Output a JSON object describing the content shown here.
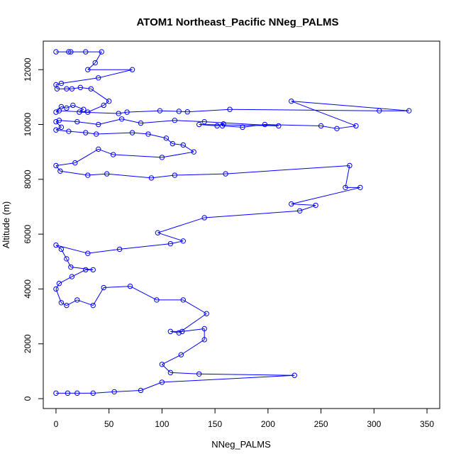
{
  "chart_data": {
    "type": "scatter",
    "connected": true,
    "title": "ATOM1 Northeast_Pacific NNeg_PALMS",
    "xlabel": "NNeg_PALMS",
    "ylabel": "Altitude (m)",
    "xlim": [
      -12,
      362
    ],
    "ylim": [
      -360,
      13040
    ],
    "x_ticks": [
      0,
      50,
      100,
      150,
      200,
      250,
      300,
      350
    ],
    "y_ticks": [
      0,
      2000,
      4000,
      6000,
      8000,
      10000,
      12000
    ],
    "grid": false,
    "legend": "none",
    "series_color": "#0000ff",
    "series": [
      {
        "points": [
          [
            0,
            12650
          ],
          [
            12,
            12650
          ],
          [
            14,
            12650
          ],
          [
            28,
            12650
          ],
          [
            43,
            12650
          ],
          [
            37,
            12250
          ],
          [
            30,
            12000
          ],
          [
            72,
            12000
          ],
          [
            40,
            11700
          ],
          [
            5,
            11500
          ],
          [
            0,
            11450
          ],
          [
            1,
            11300
          ],
          [
            10,
            11300
          ],
          [
            15,
            11300
          ],
          [
            23,
            11350
          ],
          [
            33,
            11300
          ],
          [
            50,
            10850
          ],
          [
            45,
            10700
          ],
          [
            30,
            10450
          ],
          [
            3,
            10500
          ],
          [
            0,
            10450
          ],
          [
            5,
            10650
          ],
          [
            10,
            10600
          ],
          [
            16,
            10700
          ],
          [
            26,
            10550
          ],
          [
            22,
            10450
          ],
          [
            59,
            10400
          ],
          [
            67,
            10450
          ],
          [
            98,
            10500
          ],
          [
            116,
            10480
          ],
          [
            124,
            10460
          ],
          [
            164,
            10550
          ],
          [
            305,
            10500
          ],
          [
            333,
            10500
          ],
          [
            222,
            10850
          ],
          [
            283,
            9950
          ],
          [
            265,
            9850
          ],
          [
            250,
            9950
          ],
          [
            197,
            10000
          ],
          [
            176,
            9900
          ],
          [
            157,
            9950
          ],
          [
            158,
            10020
          ],
          [
            152,
            9950
          ],
          [
            135,
            10000
          ],
          [
            210,
            9950
          ],
          [
            140,
            10100
          ],
          [
            112,
            10150
          ],
          [
            80,
            10050
          ],
          [
            62,
            10200
          ],
          [
            40,
            10000
          ],
          [
            20,
            10100
          ],
          [
            3,
            10150
          ],
          [
            0,
            10100
          ],
          [
            5,
            9900
          ],
          [
            0,
            9800
          ],
          [
            12,
            9750
          ],
          [
            28,
            9700
          ],
          [
            38,
            9650
          ],
          [
            72,
            9700
          ],
          [
            87,
            9650
          ],
          [
            104,
            9500
          ],
          [
            110,
            9300
          ],
          [
            120,
            9250
          ],
          [
            130,
            9000
          ],
          [
            100,
            8800
          ],
          [
            54,
            8900
          ],
          [
            40,
            9100
          ],
          [
            18,
            8600
          ],
          [
            0,
            8500
          ],
          [
            4,
            8300
          ],
          [
            30,
            8150
          ],
          [
            48,
            8200
          ],
          [
            90,
            8050
          ],
          [
            112,
            8150
          ],
          [
            160,
            8200
          ],
          [
            277,
            8500
          ],
          [
            273,
            7700
          ],
          [
            287,
            7700
          ],
          [
            222,
            7100
          ],
          [
            245,
            7050
          ],
          [
            230,
            6850
          ],
          [
            140,
            6600
          ],
          [
            96,
            6050
          ],
          [
            120,
            5750
          ],
          [
            108,
            5650
          ],
          [
            60,
            5450
          ],
          [
            30,
            5300
          ],
          [
            0,
            5600
          ],
          [
            5,
            5450
          ],
          [
            10,
            5100
          ],
          [
            14,
            4800
          ],
          [
            35,
            4700
          ],
          [
            28,
            4700
          ],
          [
            15,
            4450
          ],
          [
            3,
            4200
          ],
          [
            0,
            4000
          ],
          [
            5,
            3500
          ],
          [
            10,
            3400
          ],
          [
            20,
            3600
          ],
          [
            35,
            3400
          ],
          [
            45,
            4050
          ],
          [
            70,
            4100
          ],
          [
            95,
            3600
          ],
          [
            120,
            3600
          ],
          [
            142,
            3100
          ],
          [
            116,
            2400
          ],
          [
            108,
            2450
          ],
          [
            119,
            2450
          ],
          [
            140,
            2550
          ],
          [
            140,
            2150
          ],
          [
            118,
            1600
          ],
          [
            100,
            1250
          ],
          [
            108,
            950
          ],
          [
            135,
            900
          ],
          [
            225,
            850
          ],
          [
            100,
            600
          ],
          [
            80,
            300
          ],
          [
            55,
            250
          ],
          [
            35,
            200
          ],
          [
            20,
            200
          ],
          [
            11,
            200
          ],
          [
            0,
            200
          ]
        ]
      }
    ]
  }
}
